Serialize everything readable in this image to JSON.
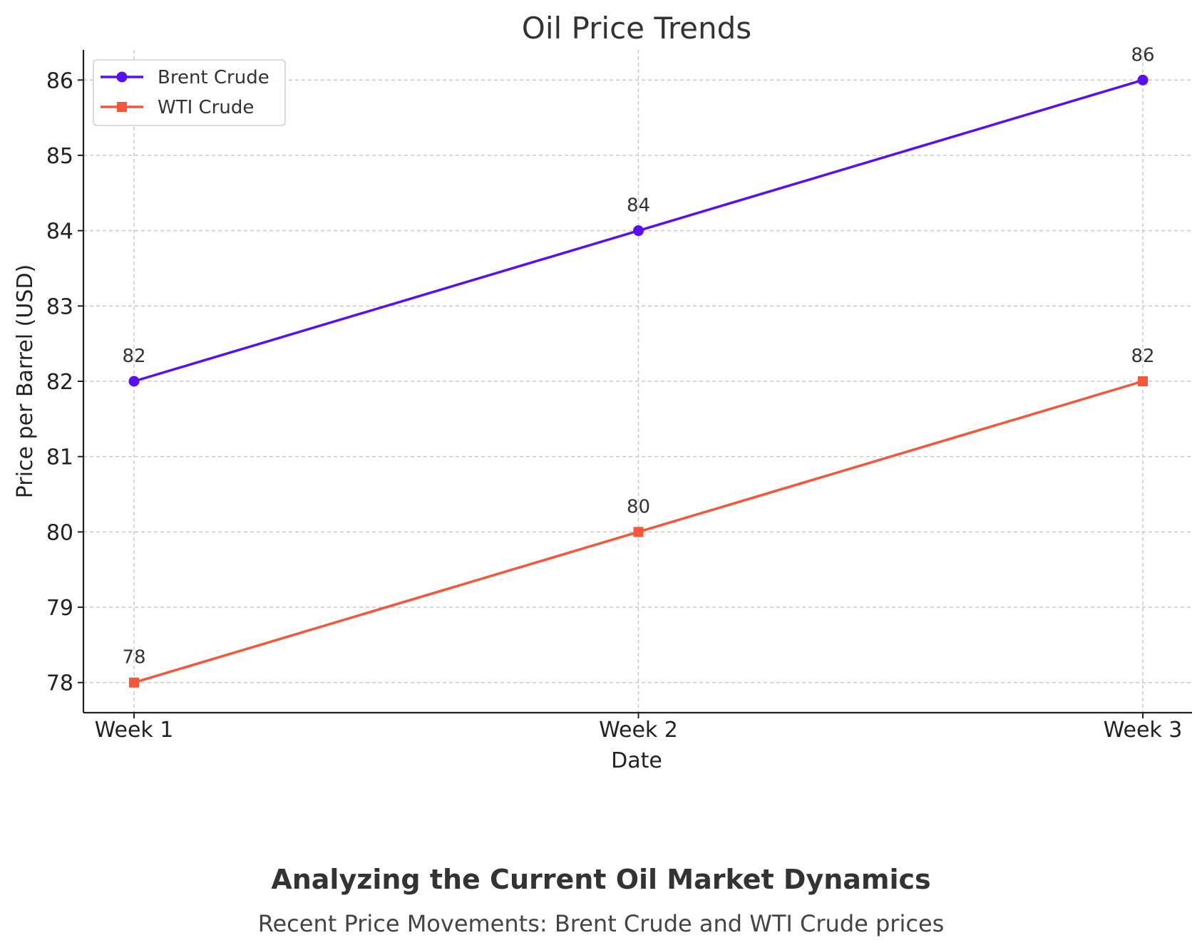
{
  "chart_data": {
    "type": "line",
    "title": "Oil Price Trends",
    "xlabel": "Date",
    "ylabel": "Price per Barrel (USD)",
    "categories": [
      "Week 1",
      "Week 2",
      "Week 3"
    ],
    "ylim": [
      77.6,
      86.4
    ],
    "yticks": [
      78,
      79,
      80,
      81,
      82,
      83,
      84,
      85,
      86
    ],
    "grid": true,
    "legend_position": "top-left",
    "series": [
      {
        "name": "Brent Crude",
        "values": [
          82,
          84,
          86
        ],
        "color": "#5a0ff0",
        "marker": "circle"
      },
      {
        "name": "WTI Crude",
        "values": [
          78,
          80,
          82
        ],
        "color": "#f4573a",
        "marker": "square"
      }
    ]
  },
  "caption": {
    "title": "Analyzing the Current Oil Market Dynamics",
    "subtitle": "Recent Price Movements: Brent Crude and WTI Crude prices"
  }
}
